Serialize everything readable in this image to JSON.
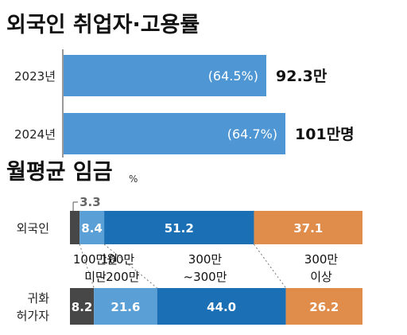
{
  "chart_data": [
    {
      "type": "bar",
      "title": "외국인 취업자·고용률",
      "categories": [
        "2023년",
        "2024년"
      ],
      "values": [
        92.3,
        101
      ],
      "value_labels": [
        "92.3만",
        "101만명"
      ],
      "rate_labels": [
        "(64.5%)",
        "(64.7%)"
      ],
      "color": "#4f97d4"
    },
    {
      "type": "bar",
      "stacked": true,
      "orientation": "horizontal",
      "title": "월평균 임금",
      "unit": "%",
      "categories": [
        "외국인",
        "귀화\n허가자"
      ],
      "segments": [
        {
          "name": "100만원\n미만",
          "color": "#474747",
          "values": [
            3.3,
            8.2
          ]
        },
        {
          "name": "100만\n~200만",
          "color": "#5a9fd6",
          "values": [
            8.4,
            21.6
          ]
        },
        {
          "name": "300만\n~300만",
          "color": "#1a6fb5",
          "values": [
            51.2,
            44.0
          ]
        },
        {
          "name": "300만\n이상",
          "color": "#e08c4a",
          "values": [
            37.1,
            26.2
          ]
        }
      ]
    }
  ]
}
